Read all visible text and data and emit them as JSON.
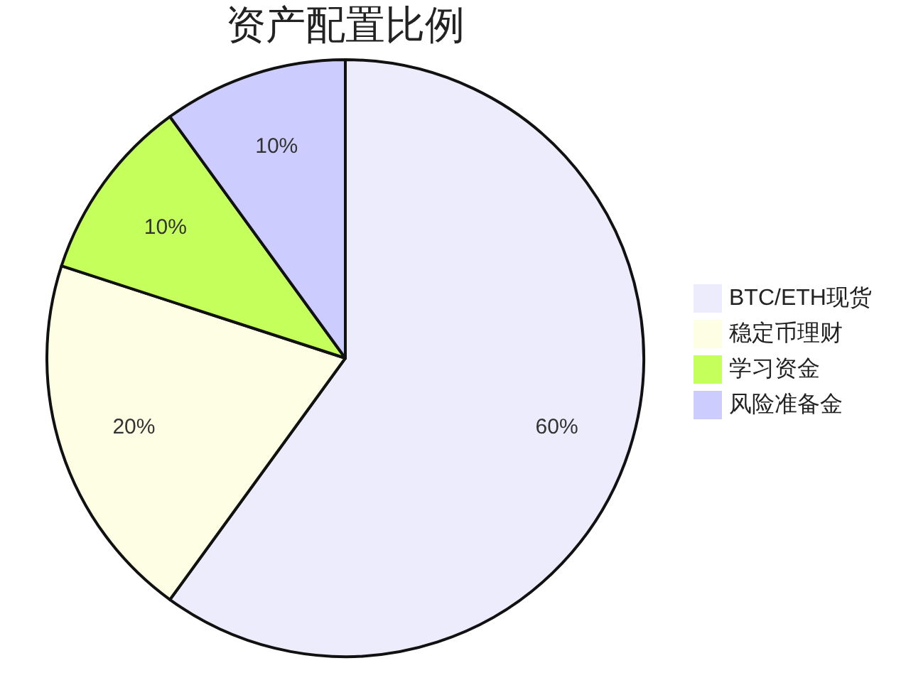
{
  "chart_data": {
    "type": "pie",
    "title": "资产配置比例",
    "categories": [
      "BTC/ETH现货",
      "稳定币理财",
      "学习资金",
      "风险准备金"
    ],
    "values": [
      60,
      20,
      10,
      10
    ],
    "colors": [
      "#ececfc",
      "#fefee4",
      "#c4ff5c",
      "#ccccff"
    ],
    "value_labels": [
      "60%",
      "20%",
      "10%",
      "10%"
    ],
    "legend": "right"
  }
}
